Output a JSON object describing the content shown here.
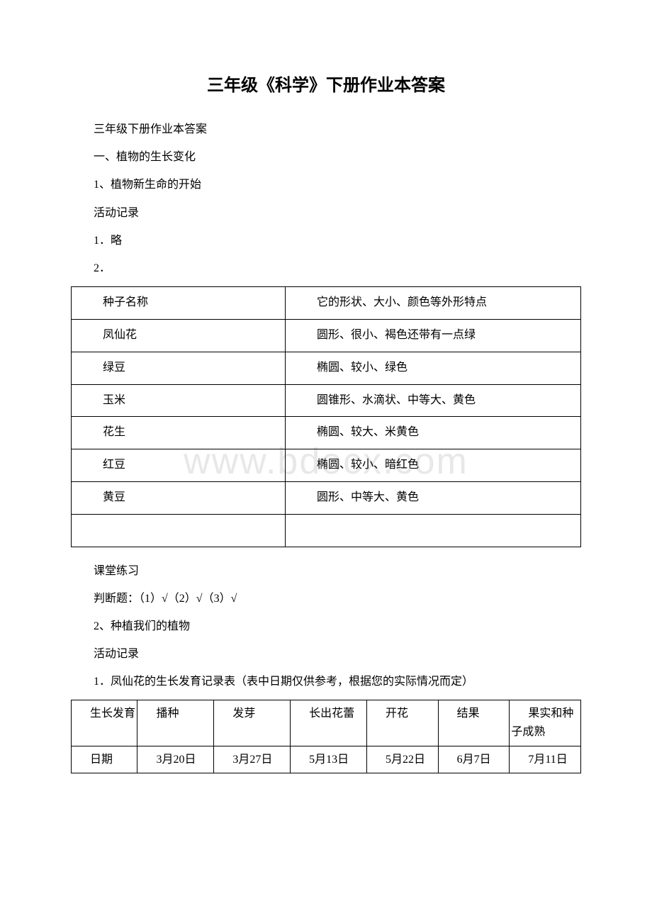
{
  "watermark": "www.bdocx.com",
  "title": "三年级《科学》下册作业本答案",
  "intro": {
    "line1": "三年级下册作业本答案",
    "line2": "一、植物的生长变化",
    "line3": "1、植物新生命的开始",
    "line4": "活动记录",
    "line5": "1．略",
    "line6": "2．"
  },
  "table1": {
    "header": {
      "c1": "种子名称",
      "c2": "它的形状、大小、颜色等外形特点"
    },
    "rows": [
      {
        "c1": "凤仙花",
        "c2": "圆形、很小、褐色还带有一点绿"
      },
      {
        "c1": "绿豆",
        "c2": "椭圆、较小、绿色"
      },
      {
        "c1": "玉米",
        "c2": "圆锥形、水滴状、中等大、黄色"
      },
      {
        "c1": "花生",
        "c2": "椭圆、较大、米黄色"
      },
      {
        "c1": "红豆",
        "c2": "椭圆、较小、暗红色"
      },
      {
        "c1": "黄豆",
        "c2": "圆形、中等大、黄色"
      },
      {
        "c1": "",
        "c2": ""
      }
    ]
  },
  "mid": {
    "line1": "课堂练习",
    "line2": "判断题：（1）√（2）√（3）√",
    "line3": "2、种植我们的植物",
    "line4": "活动记录",
    "line5": "1．凤仙花的生长发育记录表（表中日期仅供参考，根据您的实际情况而定）"
  },
  "table2": {
    "header": [
      "生长发育",
      "播种",
      "发芽",
      "长出花蕾",
      "开花",
      "结果",
      "果实和种子成熟"
    ],
    "row1": [
      "日期",
      "3月20日",
      "3月27日",
      "5月13日",
      "5月22日",
      "6月7日",
      "7月11日"
    ]
  },
  "colors": {
    "text": "#000000",
    "background": "#ffffff",
    "watermark": "#e8e8e8",
    "border": "#000000"
  }
}
